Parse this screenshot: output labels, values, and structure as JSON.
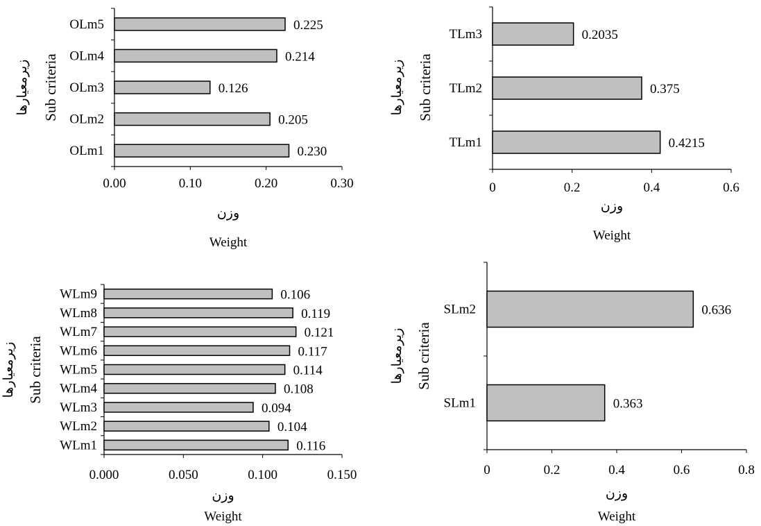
{
  "chart_data": [
    {
      "type": "bar",
      "orientation": "horizontal",
      "categories": [
        "OLm1",
        "OLm2",
        "OLm3",
        "OLm4",
        "OLm5"
      ],
      "values": [
        0.23,
        0.205,
        0.126,
        0.214,
        0.225
      ],
      "value_labels": [
        "0.230",
        "0.205",
        "0.126",
        "0.214",
        "0.225"
      ],
      "x_ticks": [
        "0.00",
        "0.10",
        "0.20",
        "0.30"
      ],
      "xlim": [
        0,
        0.3
      ],
      "xlabel_fa": "وزن",
      "xlabel_en": "Weight",
      "ylabel_fa": "زیرمعیارها",
      "ylabel_en": "Sub criteria",
      "bar_color": "#c0c0c0"
    },
    {
      "type": "bar",
      "orientation": "horizontal",
      "categories": [
        "TLm1",
        "TLm2",
        "TLm3"
      ],
      "values": [
        0.4215,
        0.375,
        0.2035
      ],
      "value_labels": [
        "0.4215",
        "0.375",
        "0.2035"
      ],
      "x_ticks": [
        "0",
        "0.2",
        "0.4",
        "0.6"
      ],
      "xlim": [
        0,
        0.6
      ],
      "xlabel_fa": "وزن",
      "xlabel_en": "Weight",
      "ylabel_fa": "زیرمعیارها",
      "ylabel_en": "Sub criteria",
      "bar_color": "#c0c0c0"
    },
    {
      "type": "bar",
      "orientation": "horizontal",
      "categories": [
        "WLm1",
        "WLm2",
        "WLm3",
        "WLm4",
        "WLm5",
        "WLm6",
        "WLm7",
        "WLm8",
        "WLm9"
      ],
      "values": [
        0.116,
        0.104,
        0.094,
        0.108,
        0.114,
        0.117,
        0.121,
        0.119,
        0.106
      ],
      "value_labels": [
        "0.116",
        "0.104",
        "0.094",
        "0.108",
        "0.114",
        "0.117",
        "0.121",
        "0.119",
        "0.106"
      ],
      "x_ticks": [
        "0.000",
        "0.050",
        "0.100",
        "0.150"
      ],
      "xlim": [
        0,
        0.15
      ],
      "xlabel_fa": "وزن",
      "xlabel_en": "Weight",
      "ylabel_fa": "زیرمعیارها",
      "ylabel_en": "Sub criteria",
      "bar_color": "#c0c0c0"
    },
    {
      "type": "bar",
      "orientation": "horizontal",
      "categories": [
        "SLm1",
        "SLm2"
      ],
      "values": [
        0.363,
        0.636
      ],
      "value_labels": [
        "0.363",
        "0.636"
      ],
      "x_ticks": [
        "0",
        "0.2",
        "0.4",
        "0.6",
        "0.8"
      ],
      "xlim": [
        0,
        0.8
      ],
      "xlabel_fa": "وزن",
      "xlabel_en": "Weight",
      "ylabel_fa": "زیرمعیارها",
      "ylabel_en": "Sub criteria",
      "bar_color": "#c0c0c0"
    }
  ]
}
